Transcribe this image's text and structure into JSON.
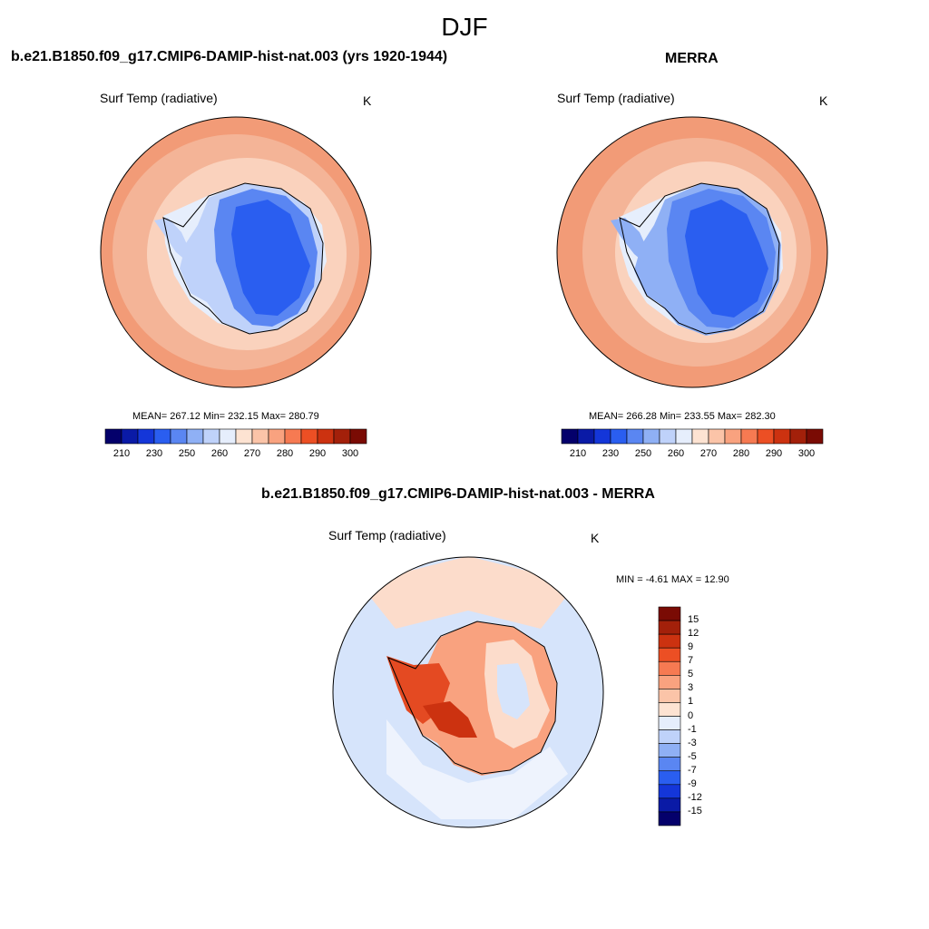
{
  "figure": {
    "season_title": "DJF"
  },
  "panels": {
    "model": {
      "title": "b.e21.B1850.f09_g17.CMIP6-DAMIP-hist-nat.003 (yrs 1920-1944)",
      "variable": "Surf Temp (radiative)",
      "units": "K",
      "stats": "MEAN= 267.12  Min= 232.15  Max= 280.79"
    },
    "obs": {
      "title": "MERRA",
      "variable": "Surf Temp (radiative)",
      "units": "K",
      "stats": "MEAN= 266.28  Min= 233.55  Max= 282.30"
    },
    "diff": {
      "title": "b.e21.B1850.f09_g17.CMIP6-DAMIP-hist-nat.003 - MERRA",
      "variable": "Surf Temp (radiative)",
      "units": "K",
      "stats": "MIN =  -4.61 MAX =  12.90"
    }
  },
  "colorbars": {
    "abs": {
      "tick_labels": [
        "210",
        "230",
        "250",
        "260",
        "270",
        "280",
        "290",
        "300"
      ],
      "colors": [
        "#04006b",
        "#0a1aa6",
        "#1436d9",
        "#2a5ef0",
        "#5a86f2",
        "#8fb0f5",
        "#bfd2fa",
        "#e6eefc",
        "#fde3d2",
        "#fbc4a8",
        "#f9a27f",
        "#f67a52",
        "#ec4f24",
        "#cc3210",
        "#a3200a",
        "#7a0b04"
      ]
    },
    "diff": {
      "tick_labels": [
        "15",
        "12",
        "9",
        "7",
        "5",
        "3",
        "1",
        "0",
        "-1",
        "-3",
        "-5",
        "-7",
        "-9",
        "-12",
        "-15"
      ],
      "colors": [
        "#7a0b04",
        "#a3200a",
        "#cc3210",
        "#ec4f24",
        "#f67a52",
        "#f9a27f",
        "#fbc4a8",
        "#fde3d2",
        "#e6eefc",
        "#bfd2fa",
        "#8fb0f5",
        "#5a86f2",
        "#2a5ef0",
        "#1436d9",
        "#0a1aa6",
        "#04006b"
      ]
    }
  },
  "map_colors": {
    "ocean_warm": "#f4b497",
    "ocean_warmer": "#f29b77",
    "ocean_light": "#fad2bd",
    "ice_cold": "#2a5ef0",
    "ice_mid": "#5a86f2",
    "ice_light": "#bfd2fa",
    "ice_pale": "#e6eefc",
    "diff_ocean": "#d6e4fb",
    "diff_ocean_pale": "#eef3fd",
    "diff_warm": "#f9a27f",
    "diff_hot": "#e44a22",
    "diff_pale": "#fcdccb"
  }
}
